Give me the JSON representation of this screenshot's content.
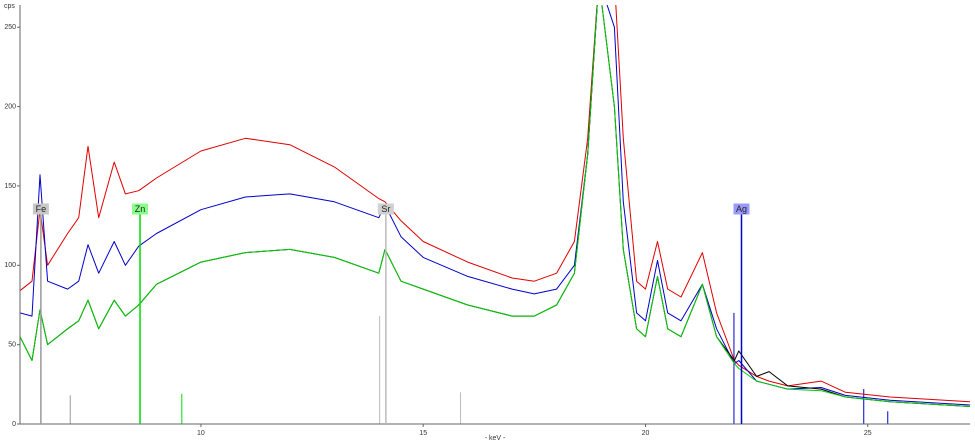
{
  "chart_data": {
    "type": "line",
    "y_axis_label": "cps",
    "x_axis_label": "- keV -",
    "xlim": [
      5.93,
      27.3
    ],
    "ylim": [
      0,
      264
    ],
    "xticks": [
      10,
      15,
      20,
      25
    ],
    "yticks": [
      0,
      50,
      100,
      150,
      200,
      250
    ],
    "x": [
      5.93,
      6.2,
      6.38,
      6.55,
      7.0,
      7.25,
      7.46,
      7.7,
      8.05,
      8.3,
      8.6,
      9.0,
      10,
      11,
      12,
      13,
      14,
      14.14,
      14.5,
      15,
      16,
      17,
      17.5,
      18,
      18.4,
      18.7,
      18.95,
      19.3,
      19.5,
      19.8,
      20.0,
      20.27,
      20.5,
      20.8,
      21.28,
      21.6,
      22.0,
      22.1,
      22.5,
      22.78,
      23.2,
      23.95,
      24.5,
      25.5,
      27.3
    ],
    "series": [
      {
        "name": "red",
        "color": "#e00000",
        "values": [
          84,
          90,
          135,
          100,
          120,
          130,
          175,
          130,
          165,
          145,
          147,
          155,
          172,
          180,
          176,
          162,
          142,
          140,
          128,
          115,
          102,
          92,
          90,
          95,
          115,
          180,
          280,
          280,
          180,
          90,
          85,
          115,
          85,
          80,
          108,
          70,
          40,
          37,
          30,
          27,
          24,
          27,
          20,
          17,
          14
        ]
      },
      {
        "name": "blue",
        "color": "#0000cc",
        "values": [
          70,
          68,
          157,
          90,
          85,
          90,
          113,
          95,
          115,
          100,
          112,
          120,
          135,
          143,
          145,
          140,
          130,
          138,
          118,
          105,
          93,
          85,
          82,
          85,
          100,
          170,
          280,
          250,
          140,
          70,
          65,
          103,
          70,
          65,
          88,
          60,
          38,
          40,
          27,
          25,
          22,
          23,
          18,
          15,
          12
        ]
      },
      {
        "name": "black",
        "color": "#000000",
        "values": [
          55,
          40,
          72,
          50,
          60,
          65,
          78,
          60,
          78,
          68,
          75,
          88,
          102,
          108,
          110,
          105,
          95,
          110,
          90,
          85,
          75,
          68,
          68,
          75,
          95,
          170,
          280,
          200,
          110,
          60,
          55,
          93,
          60,
          55,
          88,
          55,
          40,
          46,
          30,
          33,
          24,
          22,
          17,
          14,
          11
        ]
      },
      {
        "name": "green",
        "color": "#00cc00",
        "values": [
          55,
          40,
          72,
          50,
          60,
          65,
          78,
          60,
          78,
          68,
          75,
          88,
          102,
          108,
          110,
          105,
          95,
          110,
          90,
          85,
          75,
          68,
          68,
          75,
          95,
          170,
          280,
          200,
          110,
          60,
          55,
          93,
          60,
          55,
          88,
          55,
          38,
          35,
          27,
          25,
          22,
          21,
          17,
          14,
          11
        ]
      }
    ],
    "element_lines": [
      {
        "label": "Fe",
        "x": 6.4,
        "height": 132,
        "color": "#999999",
        "box": "#c8c8c8"
      },
      {
        "label": "Zn",
        "x": 8.63,
        "height": 132,
        "color": "#00dd00",
        "box": "#88ff88"
      },
      {
        "label": "Sr",
        "x": 14.16,
        "height": 132,
        "color": "#bbbbbb",
        "box": "#d0d0d0"
      },
      {
        "label": "Ag",
        "x": 22.16,
        "height": 132,
        "color": "#0000cc",
        "box": "#9999ff"
      }
    ],
    "reference_lines": [
      {
        "x": 7.06,
        "height": 18,
        "color": "#999999"
      },
      {
        "x": 9.57,
        "height": 19,
        "color": "#00dd00"
      },
      {
        "x": 14.02,
        "height": 68,
        "color": "#bbbbbb"
      },
      {
        "x": 15.84,
        "height": 20,
        "color": "#bbbbbb"
      },
      {
        "x": 21.99,
        "height": 70,
        "color": "#0000cc"
      },
      {
        "x": 24.91,
        "height": 22,
        "color": "#0000cc"
      },
      {
        "x": 25.45,
        "height": 8,
        "color": "#0000cc"
      }
    ]
  }
}
